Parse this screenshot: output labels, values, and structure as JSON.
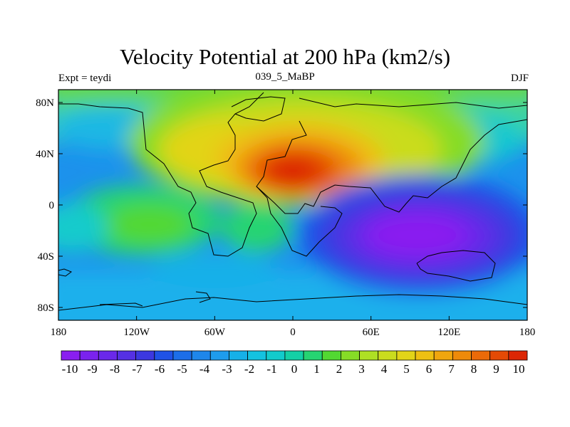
{
  "header": {
    "title": "Velocity Potential at 200 hPa (km2/s)",
    "left": "Expt = teydi",
    "center": "039_5_MaBP",
    "right": "DJF"
  },
  "axes": {
    "x_ticks": [
      "180",
      "120W",
      "60W",
      "0",
      "60E",
      "120E",
      "180"
    ],
    "x_values": [
      -180,
      -120,
      -60,
      0,
      60,
      120,
      180
    ],
    "y_ticks": [
      "80N",
      "40N",
      "0",
      "40S",
      "80S"
    ],
    "y_values": [
      80,
      40,
      0,
      -40,
      -80
    ],
    "lon_range": [
      -180,
      180
    ],
    "lat_range": [
      -90,
      90
    ]
  },
  "colorbar": {
    "labels": [
      "-10",
      "-9",
      "-8",
      "-7",
      "-6",
      "-5",
      "-4",
      "-3",
      "-2",
      "-1",
      "0",
      "1",
      "2",
      "3",
      "4",
      "5",
      "6",
      "7",
      "8",
      "9",
      "10"
    ],
    "colors": [
      "#8a1ef0",
      "#7a22ee",
      "#6a28ea",
      "#5530e4",
      "#3c38e0",
      "#1f52e6",
      "#1c6ee8",
      "#1e86ea",
      "#1e9cec",
      "#16b0e8",
      "#14c2e0",
      "#12cbcc",
      "#14d0a6",
      "#26d472",
      "#52d832",
      "#86dc26",
      "#aee024",
      "#cadc1e",
      "#e2d418",
      "#eec012",
      "#f0a60e",
      "#ee8a0a",
      "#ea6a08",
      "#e44a06",
      "#dc2604"
    ]
  },
  "chart_data": {
    "type": "heatmap",
    "title": "Velocity Potential at 200 hPa (km2/s)",
    "variable": "velocity potential",
    "level": "200 hPa",
    "units": "km2/s",
    "season": "DJF",
    "experiment": "teydi",
    "period": "039_5_MaBP",
    "projection": "cylindrical equidistant",
    "lon_range": [
      -180,
      180
    ],
    "lat_range": [
      -90,
      90
    ],
    "contour_levels": [
      -10,
      -9,
      -8,
      -7,
      -6,
      -5,
      -4,
      -3,
      -2,
      -1,
      0,
      1,
      2,
      3,
      4,
      5,
      6,
      7,
      8,
      9,
      10
    ],
    "features": [
      {
        "name": "maximum",
        "lon": 5,
        "lat": 25,
        "value": 10
      },
      {
        "name": "minimum",
        "lon": 105,
        "lat": -20,
        "value": -10
      },
      {
        "name": "secondary positive",
        "lon": -100,
        "lat": -15,
        "value": 3
      }
    ]
  }
}
